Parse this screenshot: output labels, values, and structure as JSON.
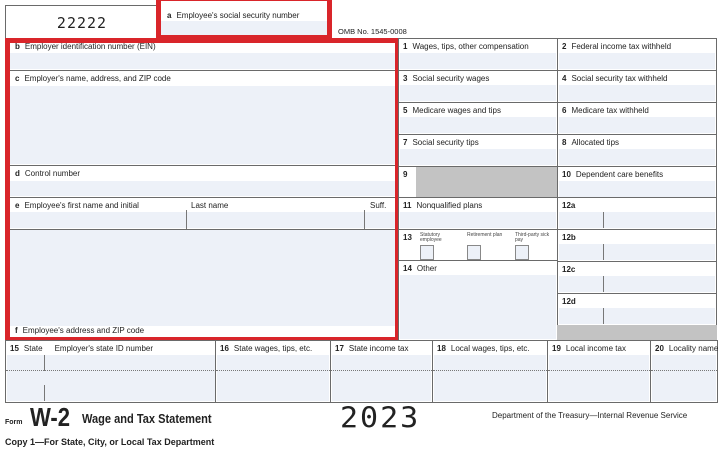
{
  "form_code": "22222",
  "omb": "OMB No. 1545-0008",
  "boxes": {
    "a": {
      "num": "a",
      "label": "Employee's social security number"
    },
    "b": {
      "num": "b",
      "label": "Employer identification number (EIN)"
    },
    "c": {
      "num": "c",
      "label": "Employer's name, address, and ZIP code"
    },
    "d": {
      "num": "d",
      "label": "Control number"
    },
    "e": {
      "num": "e",
      "label": "Employee's first name and initial",
      "last": "Last name",
      "suff": "Suff."
    },
    "f": {
      "num": "f",
      "label": "Employee's address and ZIP code"
    },
    "1": {
      "num": "1",
      "label": "Wages, tips, other compensation"
    },
    "2": {
      "num": "2",
      "label": "Federal income tax withheld"
    },
    "3": {
      "num": "3",
      "label": "Social security wages"
    },
    "4": {
      "num": "4",
      "label": "Social security tax withheld"
    },
    "5": {
      "num": "5",
      "label": "Medicare wages and tips"
    },
    "6": {
      "num": "6",
      "label": "Medicare tax withheld"
    },
    "7": {
      "num": "7",
      "label": "Social security tips"
    },
    "8": {
      "num": "8",
      "label": "Allocated tips"
    },
    "9": {
      "num": "9",
      "label": ""
    },
    "10": {
      "num": "10",
      "label": "Dependent care benefits"
    },
    "11": {
      "num": "11",
      "label": "Nonqualified plans"
    },
    "12a": {
      "num": "12a"
    },
    "12b": {
      "num": "12b"
    },
    "12c": {
      "num": "12c"
    },
    "12d": {
      "num": "12d"
    },
    "13": {
      "num": "13",
      "statutory": "Statutory employee",
      "retirement": "Retirement plan",
      "thirdparty": "Third-party sick pay"
    },
    "14": {
      "num": "14",
      "label": "Other"
    },
    "15": {
      "num": "15",
      "label": "State",
      "sub": "Employer's state ID number"
    },
    "16": {
      "num": "16",
      "label": "State wages, tips, etc."
    },
    "17": {
      "num": "17",
      "label": "State income tax"
    },
    "18": {
      "num": "18",
      "label": "Local wages, tips, etc."
    },
    "19": {
      "num": "19",
      "label": "Local income tax"
    },
    "20": {
      "num": "20",
      "label": "Locality name"
    }
  },
  "footer": {
    "form": "Form",
    "name": "W-2",
    "title": "Wage and Tax Statement",
    "year": "2023",
    "dept": "Department of the Treasury—Internal Revenue Service",
    "copy": "Copy 1—For State, City, or Local Tax Department"
  },
  "colors": {
    "highlight": "#d9252a"
  }
}
